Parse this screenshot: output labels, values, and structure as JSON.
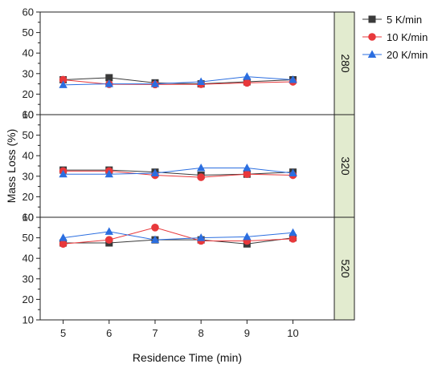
{
  "chart_data": {
    "type": "line",
    "xlabel": "Residence Time (min)",
    "ylabel": "Mass Loss (%)",
    "x": [
      5,
      6,
      7,
      8,
      9,
      10
    ],
    "ylim": [
      10,
      60
    ],
    "yticks": [
      10,
      20,
      30,
      40,
      50,
      60
    ],
    "grid": false,
    "legend_position": "top-right",
    "series_styles": [
      {
        "name": "5 K/min",
        "color": "#3a3a3a",
        "marker": "square"
      },
      {
        "name": "10 K/min",
        "color": "#e8383b",
        "marker": "circle"
      },
      {
        "name": "20 K/min",
        "color": "#2b6ee0",
        "marker": "triangle"
      }
    ],
    "panels": [
      {
        "label": "280",
        "series": [
          {
            "name": "5 K/min",
            "values": [
              27,
              28,
              25.5,
              25,
              26,
              27
            ]
          },
          {
            "name": "10 K/min",
            "values": [
              27,
              24.8,
              24.7,
              24.8,
              25.5,
              26
            ]
          },
          {
            "name": "20 K/min",
            "values": [
              24.5,
              25,
              25,
              26,
              28.5,
              27
            ]
          }
        ]
      },
      {
        "label": "320",
        "series": [
          {
            "name": "5 K/min",
            "values": [
              33,
              33,
              32,
              30.5,
              31,
              32
            ]
          },
          {
            "name": "10 K/min",
            "values": [
              32.5,
              32.5,
              30.5,
              29.5,
              31,
              30.5
            ]
          },
          {
            "name": "20 K/min",
            "values": [
              31,
              31,
              31.5,
              34,
              34,
              31.5
            ]
          }
        ]
      },
      {
        "label": "520",
        "series": [
          {
            "name": "5 K/min",
            "values": [
              47.5,
              47.5,
              49,
              49,
              47,
              50
            ]
          },
          {
            "name": "10 K/min",
            "values": [
              47,
              49,
              55,
              48.5,
              48.5,
              49.5
            ]
          },
          {
            "name": "20 K/min",
            "values": [
              50,
              53,
              49,
              50,
              50.5,
              52.5
            ]
          }
        ]
      }
    ],
    "strip_color": "#e2ebcf"
  }
}
